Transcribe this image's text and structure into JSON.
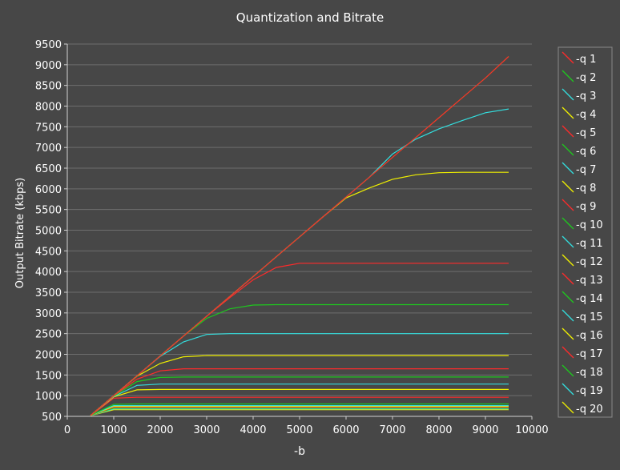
{
  "chart_data": {
    "type": "line",
    "title": "Quantization and Bitrate",
    "xlabel": "-b",
    "ylabel": "Output Bitrate (kbps)",
    "xlim": [
      0,
      10000
    ],
    "ylim": [
      500,
      9500
    ],
    "xticks": [
      0,
      1000,
      2000,
      3000,
      4000,
      5000,
      6000,
      7000,
      8000,
      9000,
      10000
    ],
    "yticks": [
      500,
      1000,
      1500,
      2000,
      2500,
      3000,
      3500,
      4000,
      4500,
      5000,
      5500,
      6000,
      6500,
      7000,
      7500,
      8000,
      8500,
      9000,
      9500
    ],
    "grid": true,
    "legend_position": "right",
    "x": [
      500,
      1000,
      1500,
      2000,
      2500,
      3000,
      3500,
      4000,
      4500,
      5000,
      5500,
      6000,
      6500,
      7000,
      7500,
      8000,
      8500,
      9000,
      9500
    ],
    "series": [
      {
        "name": "-q 1",
        "color": "#ff2a2a",
        "values": [
          520,
          1000,
          1480,
          1960,
          2440,
          2920,
          3400,
          3880,
          4360,
          4840,
          5320,
          5800,
          6280,
          6760,
          7240,
          7720,
          8200,
          8680,
          9200
        ]
      },
      {
        "name": "-q 2",
        "color": "#1ec81e",
        "values": [
          520,
          1000,
          1480,
          1960,
          2440,
          2920,
          3400,
          3880,
          4360,
          4840,
          5320,
          5800,
          6280,
          6760,
          7240,
          7720,
          8200,
          8680,
          9200
        ]
      },
      {
        "name": "-q 3",
        "color": "#33dddd",
        "values": [
          520,
          1000,
          1480,
          1960,
          2440,
          2920,
          3400,
          3880,
          4360,
          4840,
          5320,
          5800,
          6280,
          6840,
          7200,
          7450,
          7650,
          7840,
          7930
        ]
      },
      {
        "name": "-q 4",
        "color": "#f0f000",
        "values": [
          520,
          1000,
          1480,
          1960,
          2440,
          2920,
          3400,
          3880,
          4360,
          4840,
          5320,
          5780,
          6020,
          6230,
          6340,
          6390,
          6400,
          6400,
          6400
        ]
      },
      {
        "name": "-q 5",
        "color": "#ff2a2a",
        "values": [
          520,
          1000,
          1480,
          1960,
          2440,
          2920,
          3370,
          3800,
          4100,
          4200,
          4200,
          4200,
          4200,
          4200,
          4200,
          4200,
          4200,
          4200,
          4200
        ]
      },
      {
        "name": "-q 6",
        "color": "#1ec81e",
        "values": [
          520,
          1000,
          1480,
          1960,
          2440,
          2870,
          3100,
          3190,
          3200,
          3200,
          3200,
          3200,
          3200,
          3200,
          3200,
          3200,
          3200,
          3200,
          3200
        ]
      },
      {
        "name": "-q 7",
        "color": "#33dddd",
        "values": [
          520,
          1000,
          1480,
          1950,
          2300,
          2480,
          2500,
          2500,
          2500,
          2500,
          2500,
          2500,
          2500,
          2500,
          2500,
          2500,
          2500,
          2500,
          2500
        ]
      },
      {
        "name": "-q 8",
        "color": "#f0f000",
        "values": [
          520,
          1000,
          1470,
          1780,
          1940,
          1970,
          1970,
          1970,
          1970,
          1970,
          1970,
          1970,
          1970,
          1970,
          1970,
          1970,
          1970,
          1970,
          1970
        ]
      },
      {
        "name": "-q 9",
        "color": "#ff2a2a",
        "values": [
          520,
          1000,
          1400,
          1600,
          1650,
          1650,
          1650,
          1650,
          1650,
          1650,
          1650,
          1650,
          1650,
          1650,
          1650,
          1650,
          1650,
          1650,
          1650
        ]
      },
      {
        "name": "-q 10",
        "color": "#1ec81e",
        "values": [
          520,
          990,
          1340,
          1440,
          1450,
          1450,
          1450,
          1450,
          1450,
          1450,
          1450,
          1450,
          1450,
          1450,
          1450,
          1450,
          1450,
          1450,
          1450
        ]
      },
      {
        "name": "-q 11",
        "color": "#33dddd",
        "values": [
          520,
          980,
          1250,
          1280,
          1280,
          1280,
          1280,
          1280,
          1280,
          1280,
          1280,
          1280,
          1280,
          1280,
          1280,
          1280,
          1280,
          1280,
          1280
        ]
      },
      {
        "name": "-q 12",
        "color": "#f0f000",
        "values": [
          520,
          970,
          1140,
          1150,
          1150,
          1150,
          1150,
          1150,
          1150,
          1150,
          1150,
          1150,
          1150,
          1150,
          1150,
          1150,
          1150,
          1150,
          1150
        ]
      },
      {
        "name": "-q 13",
        "color": "#ff2a2a",
        "values": [
          520,
          940,
          960,
          960,
          960,
          960,
          960,
          960,
          960,
          960,
          960,
          960,
          960,
          960,
          960,
          960,
          960,
          960,
          960
        ]
      },
      {
        "name": "-q 14",
        "color": "#1ec81e",
        "values": [
          520,
          790,
          800,
          800,
          800,
          800,
          800,
          800,
          800,
          800,
          800,
          800,
          800,
          800,
          800,
          800,
          800,
          800,
          800
        ]
      },
      {
        "name": "-q 15",
        "color": "#33dddd",
        "values": [
          520,
          760,
          760,
          760,
          760,
          760,
          760,
          760,
          760,
          760,
          760,
          760,
          760,
          760,
          760,
          760,
          760,
          760,
          760
        ]
      },
      {
        "name": "-q 16",
        "color": "#f0f000",
        "values": [
          520,
          740,
          740,
          740,
          740,
          740,
          740,
          740,
          740,
          740,
          740,
          740,
          740,
          740,
          740,
          740,
          740,
          740,
          740
        ]
      },
      {
        "name": "-q 17",
        "color": "#ff2a2a",
        "values": [
          520,
          720,
          720,
          720,
          720,
          720,
          720,
          720,
          720,
          720,
          720,
          720,
          720,
          720,
          720,
          720,
          720,
          720,
          720
        ]
      },
      {
        "name": "-q 18",
        "color": "#1ec81e",
        "values": [
          520,
          700,
          700,
          700,
          700,
          700,
          700,
          700,
          700,
          700,
          700,
          700,
          700,
          700,
          700,
          700,
          700,
          700,
          700
        ]
      },
      {
        "name": "-q 19",
        "color": "#33dddd",
        "values": [
          520,
          680,
          680,
          680,
          680,
          680,
          680,
          680,
          680,
          680,
          680,
          680,
          680,
          680,
          680,
          680,
          680,
          680,
          680
        ]
      },
      {
        "name": "-q 20",
        "color": "#f0f000",
        "values": [
          520,
          660,
          660,
          660,
          660,
          660,
          660,
          660,
          660,
          660,
          660,
          660,
          660,
          660,
          660,
          660,
          660,
          660,
          660
        ]
      }
    ]
  }
}
